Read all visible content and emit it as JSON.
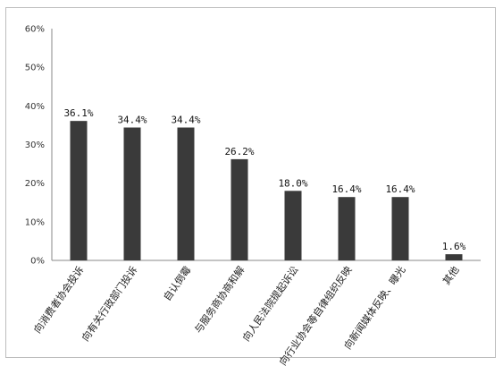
{
  "chart_data": {
    "type": "bar",
    "title": "",
    "xlabel": "",
    "ylabel": "",
    "ylim": [
      0,
      60
    ],
    "yticks": [
      "0%",
      "10%",
      "20%",
      "30%",
      "40%",
      "50%",
      "60%"
    ],
    "grid": false,
    "categories": [
      "向消费者协会投诉",
      "向有关行政部门投诉",
      "自认倒霉",
      "与服务商协商和解",
      "向人民法院提起诉讼",
      "向行业协会等自律组织反映",
      "向新闻媒体反映、曝光",
      "其他"
    ],
    "values": [
      36.1,
      34.4,
      34.4,
      26.2,
      18.0,
      16.4,
      16.4,
      1.6
    ],
    "data_labels": [
      "36.1%",
      "34.4%",
      "34.4%",
      "26.2%",
      "18.0%",
      "16.4%",
      "16.4%",
      "1.6%"
    ],
    "bar_color": "#3a3a3a"
  }
}
